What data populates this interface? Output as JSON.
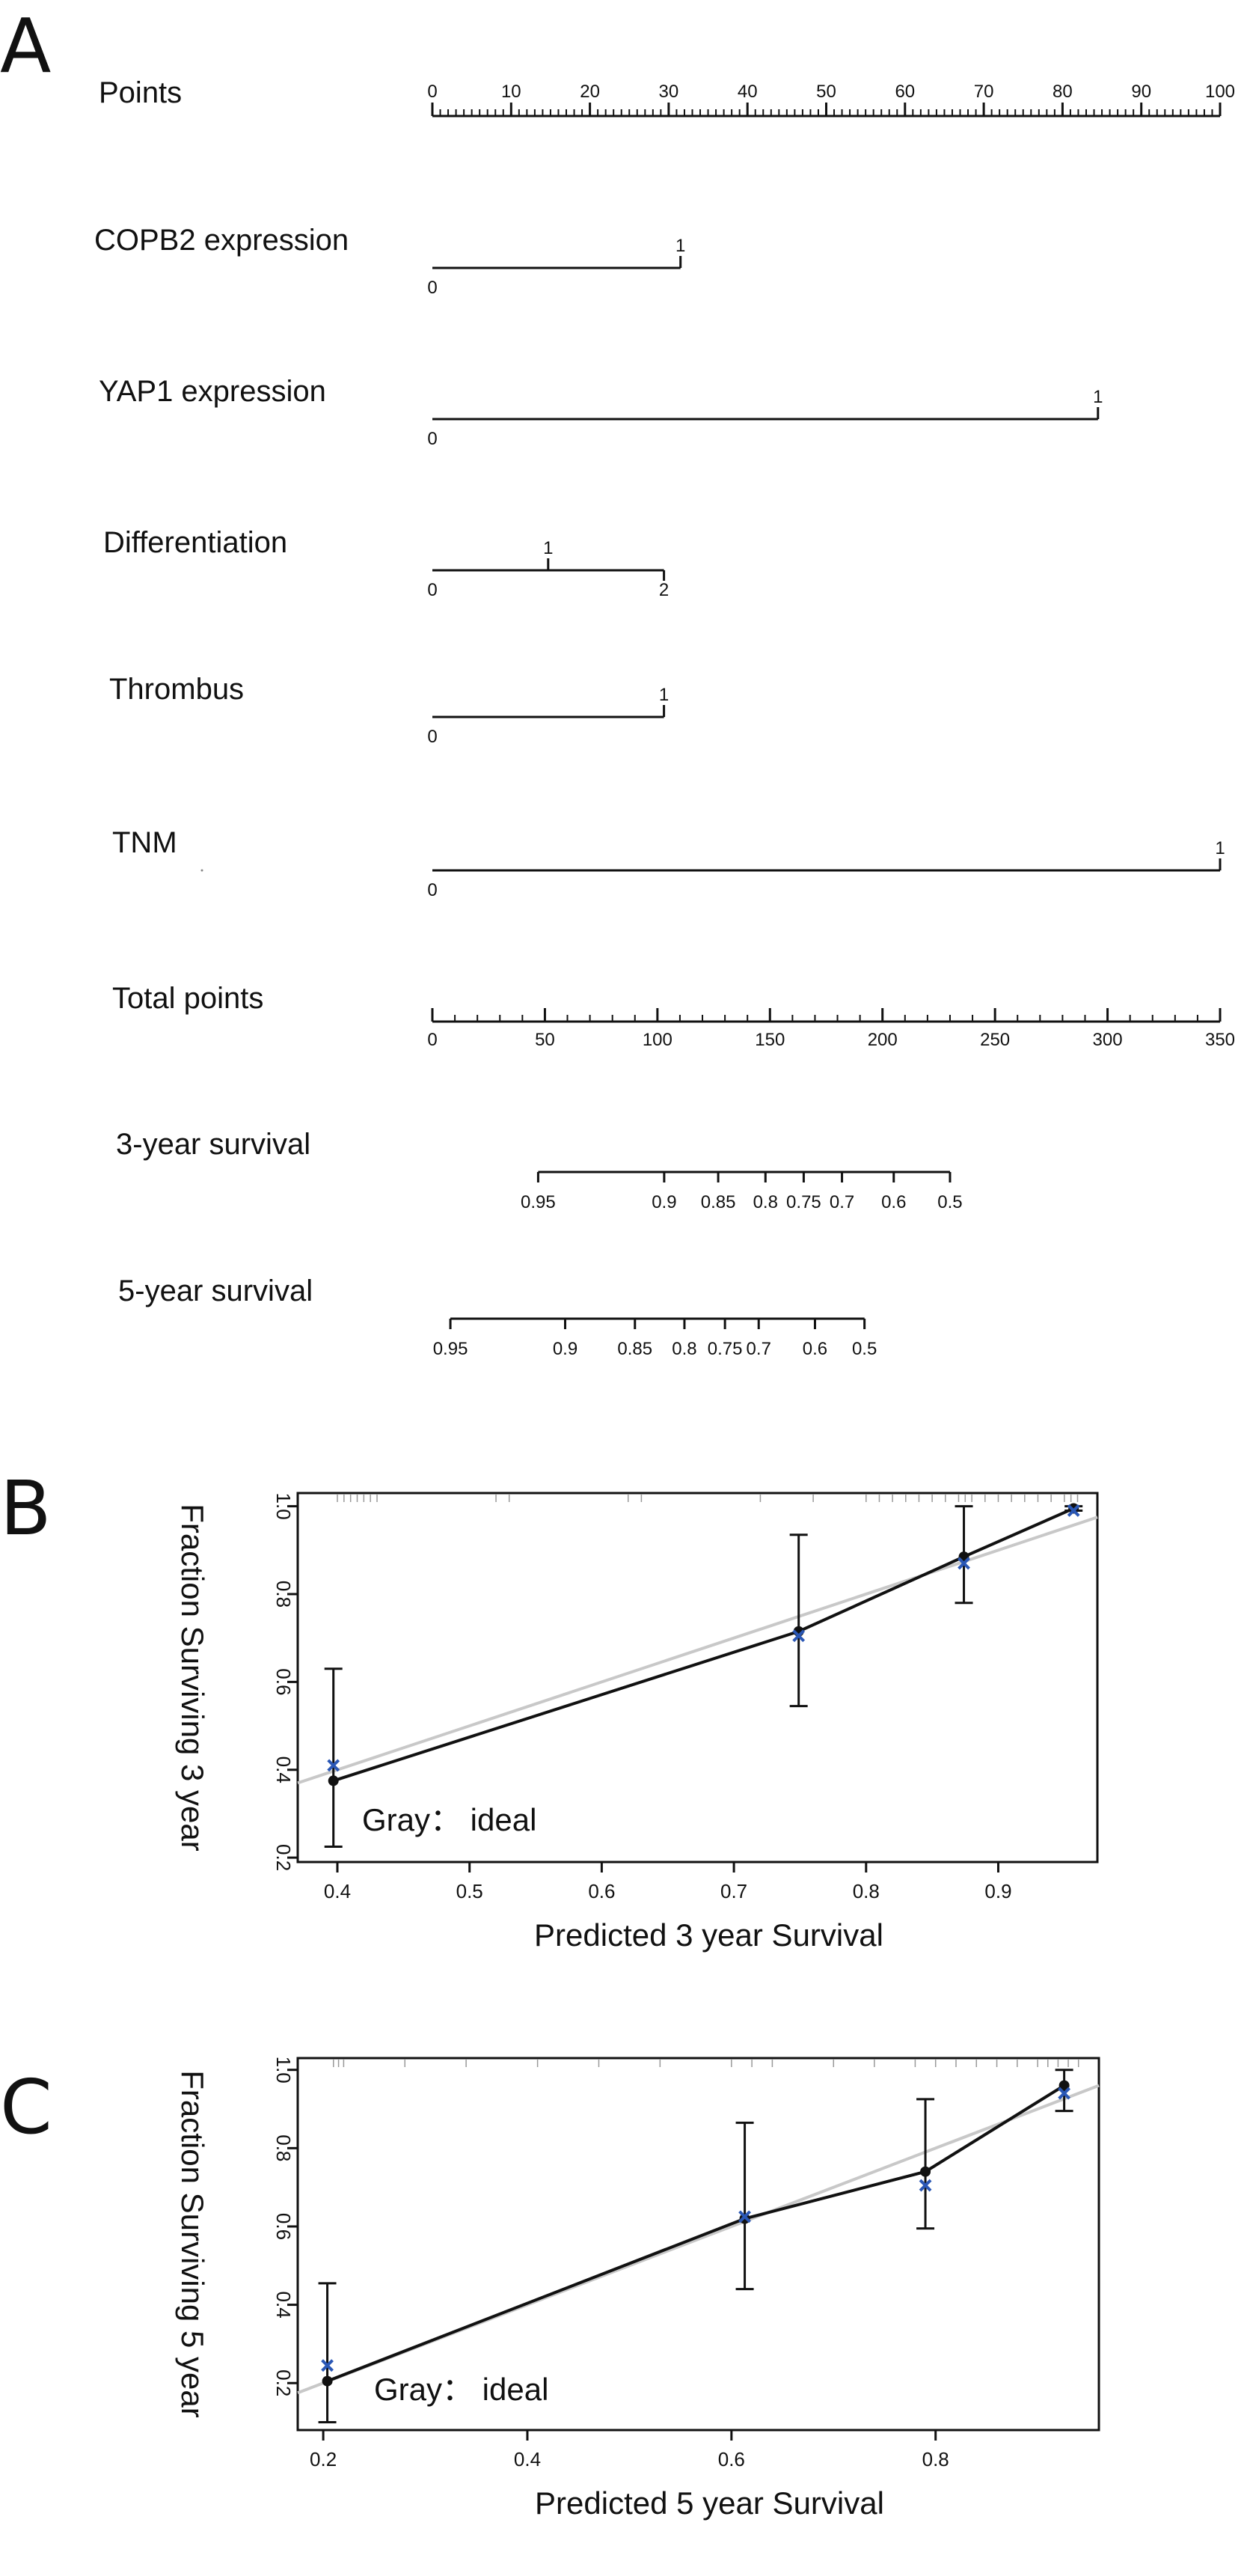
{
  "panels": {
    "a": "A",
    "b": "B",
    "c": "C"
  },
  "nomogram": {
    "rows": [
      {
        "label": "Points",
        "type": "scale",
        "min": 0,
        "max": 100,
        "major_step": 10,
        "minor_step": 1,
        "ticks": [
          "0",
          "10",
          "20",
          "30",
          "40",
          "50",
          "60",
          "70",
          "80",
          "90",
          "100"
        ]
      },
      {
        "label": "COPB2 expression",
        "type": "factor",
        "points": [
          0,
          31.5
        ],
        "labels": [
          "0",
          "1"
        ]
      },
      {
        "label": "YAP1 expression",
        "type": "factor",
        "points": [
          0,
          84.5
        ],
        "labels": [
          "0",
          "1"
        ]
      },
      {
        "label": "Differentiation",
        "type": "factor",
        "points": [
          0,
          14.7,
          29.4
        ],
        "labels": [
          "0",
          "1",
          "2"
        ]
      },
      {
        "label": "Thrombus",
        "type": "factor",
        "points": [
          0,
          29.4
        ],
        "labels": [
          "0",
          "1"
        ]
      },
      {
        "label": "TNM",
        "type": "factor",
        "points": [
          0,
          100
        ],
        "labels": [
          "0",
          "1"
        ]
      },
      {
        "label": "Total points",
        "type": "scale",
        "min": 0,
        "max": 350,
        "major_step": 50,
        "minor_step": 10,
        "ticks": [
          "0",
          "50",
          "100",
          "150",
          "200",
          "250",
          "300",
          "350"
        ]
      },
      {
        "label": "3-year survival",
        "type": "survival",
        "total_points": [
          47,
          103,
          127,
          148,
          165,
          182,
          205,
          230
        ],
        "labels": [
          "0.95",
          "0.9",
          "0.85",
          "0.8",
          "0.75",
          "0.7",
          "0.6",
          "0.5"
        ]
      },
      {
        "label": "5-year survival",
        "type": "survival",
        "total_points": [
          8,
          59,
          90,
          112,
          130,
          145,
          170,
          192
        ],
        "labels": [
          "0.95",
          "0.9",
          "0.85",
          "0.8",
          "0.75",
          "0.7",
          "0.6",
          "0.5"
        ]
      }
    ]
  },
  "chart_data": [
    {
      "type": "scatter",
      "title": "",
      "xlabel": "Predicted 3 year Survival",
      "ylabel": "Fraction Surviving 3 year",
      "xlim": [
        0.37,
        0.975
      ],
      "ylim": [
        0.19,
        1.03
      ],
      "x_ticks": [
        0.4,
        0.5,
        0.6,
        0.7,
        0.8,
        0.9
      ],
      "x_tick_labels": [
        "0.4",
        "0.5",
        "0.6",
        "0.7",
        "0.8",
        "0.9"
      ],
      "y_ticks": [
        0.2,
        0.4,
        0.6,
        0.8,
        1.0
      ],
      "y_tick_labels": [
        "0.2",
        "0.4",
        "0.6",
        "0.8",
        "1.0"
      ],
      "legend_text": "Gray： ideal",
      "ideal_line": [
        [
          0.37,
          0.37
        ],
        [
          0.975,
          0.975
        ]
      ],
      "series": [
        {
          "name": "observed",
          "x": [
            0.397,
            0.749,
            0.874,
            0.957
          ],
          "y": [
            0.375,
            0.715,
            0.885,
            0.995
          ],
          "lower": [
            0.225,
            0.545,
            0.78,
            0.99
          ],
          "upper": [
            0.63,
            0.935,
            1.0,
            1.0
          ]
        },
        {
          "name": "bias-corrected",
          "marker": "x",
          "x": [
            0.397,
            0.749,
            0.874,
            0.957
          ],
          "y": [
            0.41,
            0.705,
            0.87,
            0.99
          ]
        }
      ],
      "rug": [
        0.4,
        0.405,
        0.41,
        0.415,
        0.42,
        0.425,
        0.43,
        0.52,
        0.53,
        0.62,
        0.63,
        0.72,
        0.76,
        0.8,
        0.81,
        0.82,
        0.83,
        0.84,
        0.85,
        0.86,
        0.87,
        0.875,
        0.88,
        0.89,
        0.9,
        0.91,
        0.92,
        0.93,
        0.94,
        0.95,
        0.955,
        0.96
      ]
    },
    {
      "type": "scatter",
      "title": "",
      "xlabel": "Predicted 5 year Survival",
      "ylabel": "Fraction Surviving 5 year",
      "xlim": [
        0.175,
        0.96
      ],
      "ylim": [
        0.08,
        1.03
      ],
      "x_ticks": [
        0.2,
        0.4,
        0.6,
        0.8
      ],
      "x_tick_labels": [
        "0.2",
        "0.4",
        "0.6",
        "0.8"
      ],
      "y_ticks": [
        0.2,
        0.4,
        0.6,
        0.8,
        1.0
      ],
      "y_tick_labels": [
        "0.2",
        "0.4",
        "0.6",
        "0.8",
        "1.0"
      ],
      "legend_text": "Gray： ideal",
      "ideal_line": [
        [
          0.175,
          0.175
        ],
        [
          0.96,
          0.96
        ]
      ],
      "series": [
        {
          "name": "observed",
          "x": [
            0.204,
            0.613,
            0.79,
            0.926
          ],
          "y": [
            0.205,
            0.62,
            0.74,
            0.96
          ],
          "lower": [
            0.1,
            0.44,
            0.595,
            0.895
          ],
          "upper": [
            0.455,
            0.865,
            0.925,
            1.0
          ]
        },
        {
          "name": "bias-corrected",
          "marker": "x",
          "x": [
            0.204,
            0.613,
            0.79,
            0.926
          ],
          "y": [
            0.245,
            0.625,
            0.705,
            0.94
          ]
        }
      ],
      "rug": [
        0.21,
        0.215,
        0.22,
        0.28,
        0.34,
        0.41,
        0.47,
        0.53,
        0.6,
        0.62,
        0.64,
        0.7,
        0.74,
        0.78,
        0.8,
        0.82,
        0.84,
        0.86,
        0.88,
        0.9,
        0.91,
        0.92,
        0.93,
        0.94
      ]
    }
  ]
}
